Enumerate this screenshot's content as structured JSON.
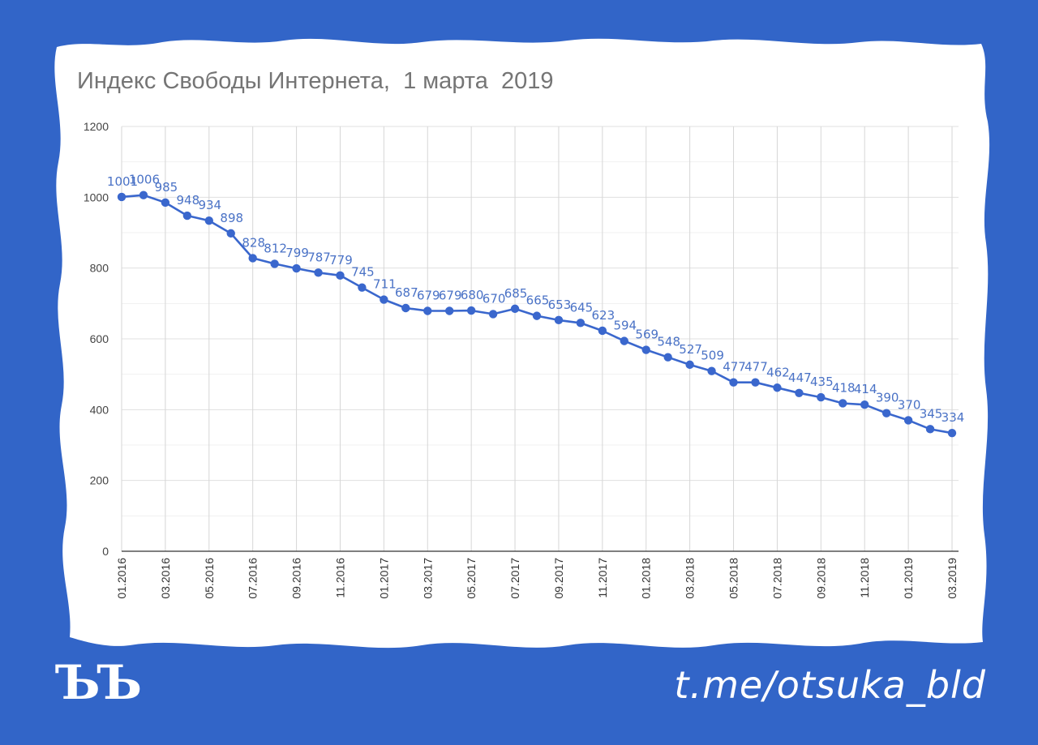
{
  "title": "Индекс Свободы Интернета,  1 марта  2019",
  "footer": {
    "logo_text": "ЪЪ",
    "channel_link": "t.me/otsuka_bld"
  },
  "colors": {
    "background": "#3265c8",
    "paper": "#ffffff",
    "line": "#3a67cd",
    "label": "#4a72c6",
    "grid": "#e0e0e0"
  },
  "chart_data": {
    "type": "line",
    "title": "Индекс Свободы Интернета,  1 марта  2019",
    "xlabel": "",
    "ylabel": "",
    "ylim": [
      0,
      1200
    ],
    "yticks": [
      "0",
      "200",
      "400",
      "600",
      "800",
      "1000",
      "1200"
    ],
    "x": [
      "01.2016",
      "02.2016",
      "03.2016",
      "04.2016",
      "05.2016",
      "06.2016",
      "07.2016",
      "08.2016",
      "09.2016",
      "10.2016",
      "11.2016",
      "12.2016",
      "01.2017",
      "02.2017",
      "03.2017",
      "04.2017",
      "05.2017",
      "06.2017",
      "07.2017",
      "08.2017",
      "09.2017",
      "10.2017",
      "11.2017",
      "12.2017",
      "01.2018",
      "02.2018",
      "03.2018",
      "04.2018",
      "05.2018",
      "06.2018",
      "07.2018",
      "08.2018",
      "09.2018",
      "10.2018",
      "11.2018",
      "12.2018",
      "01.2019",
      "02.2019",
      "03.2019"
    ],
    "xtick_labels": [
      "01.2016",
      "03.2016",
      "05.2016",
      "07.2016",
      "09.2016",
      "11.2016",
      "01.2017",
      "03.2017",
      "05.2017",
      "07.2017",
      "09.2017",
      "11.2017",
      "01.2018",
      "03.2018",
      "05.2018",
      "07.2018",
      "09.2018",
      "11.2018",
      "01.2019",
      "03.2019"
    ],
    "series": [
      {
        "values": [
          1001,
          1006,
          985,
          948,
          934,
          898,
          828,
          812,
          799,
          787,
          779,
          745,
          711,
          687,
          679,
          679,
          680,
          670,
          685,
          665,
          653,
          645,
          623,
          594,
          569,
          548,
          527,
          509,
          477,
          477,
          462,
          447,
          435,
          418,
          414,
          390,
          370,
          345,
          334
        ]
      }
    ],
    "grid": true,
    "legend": "none"
  }
}
